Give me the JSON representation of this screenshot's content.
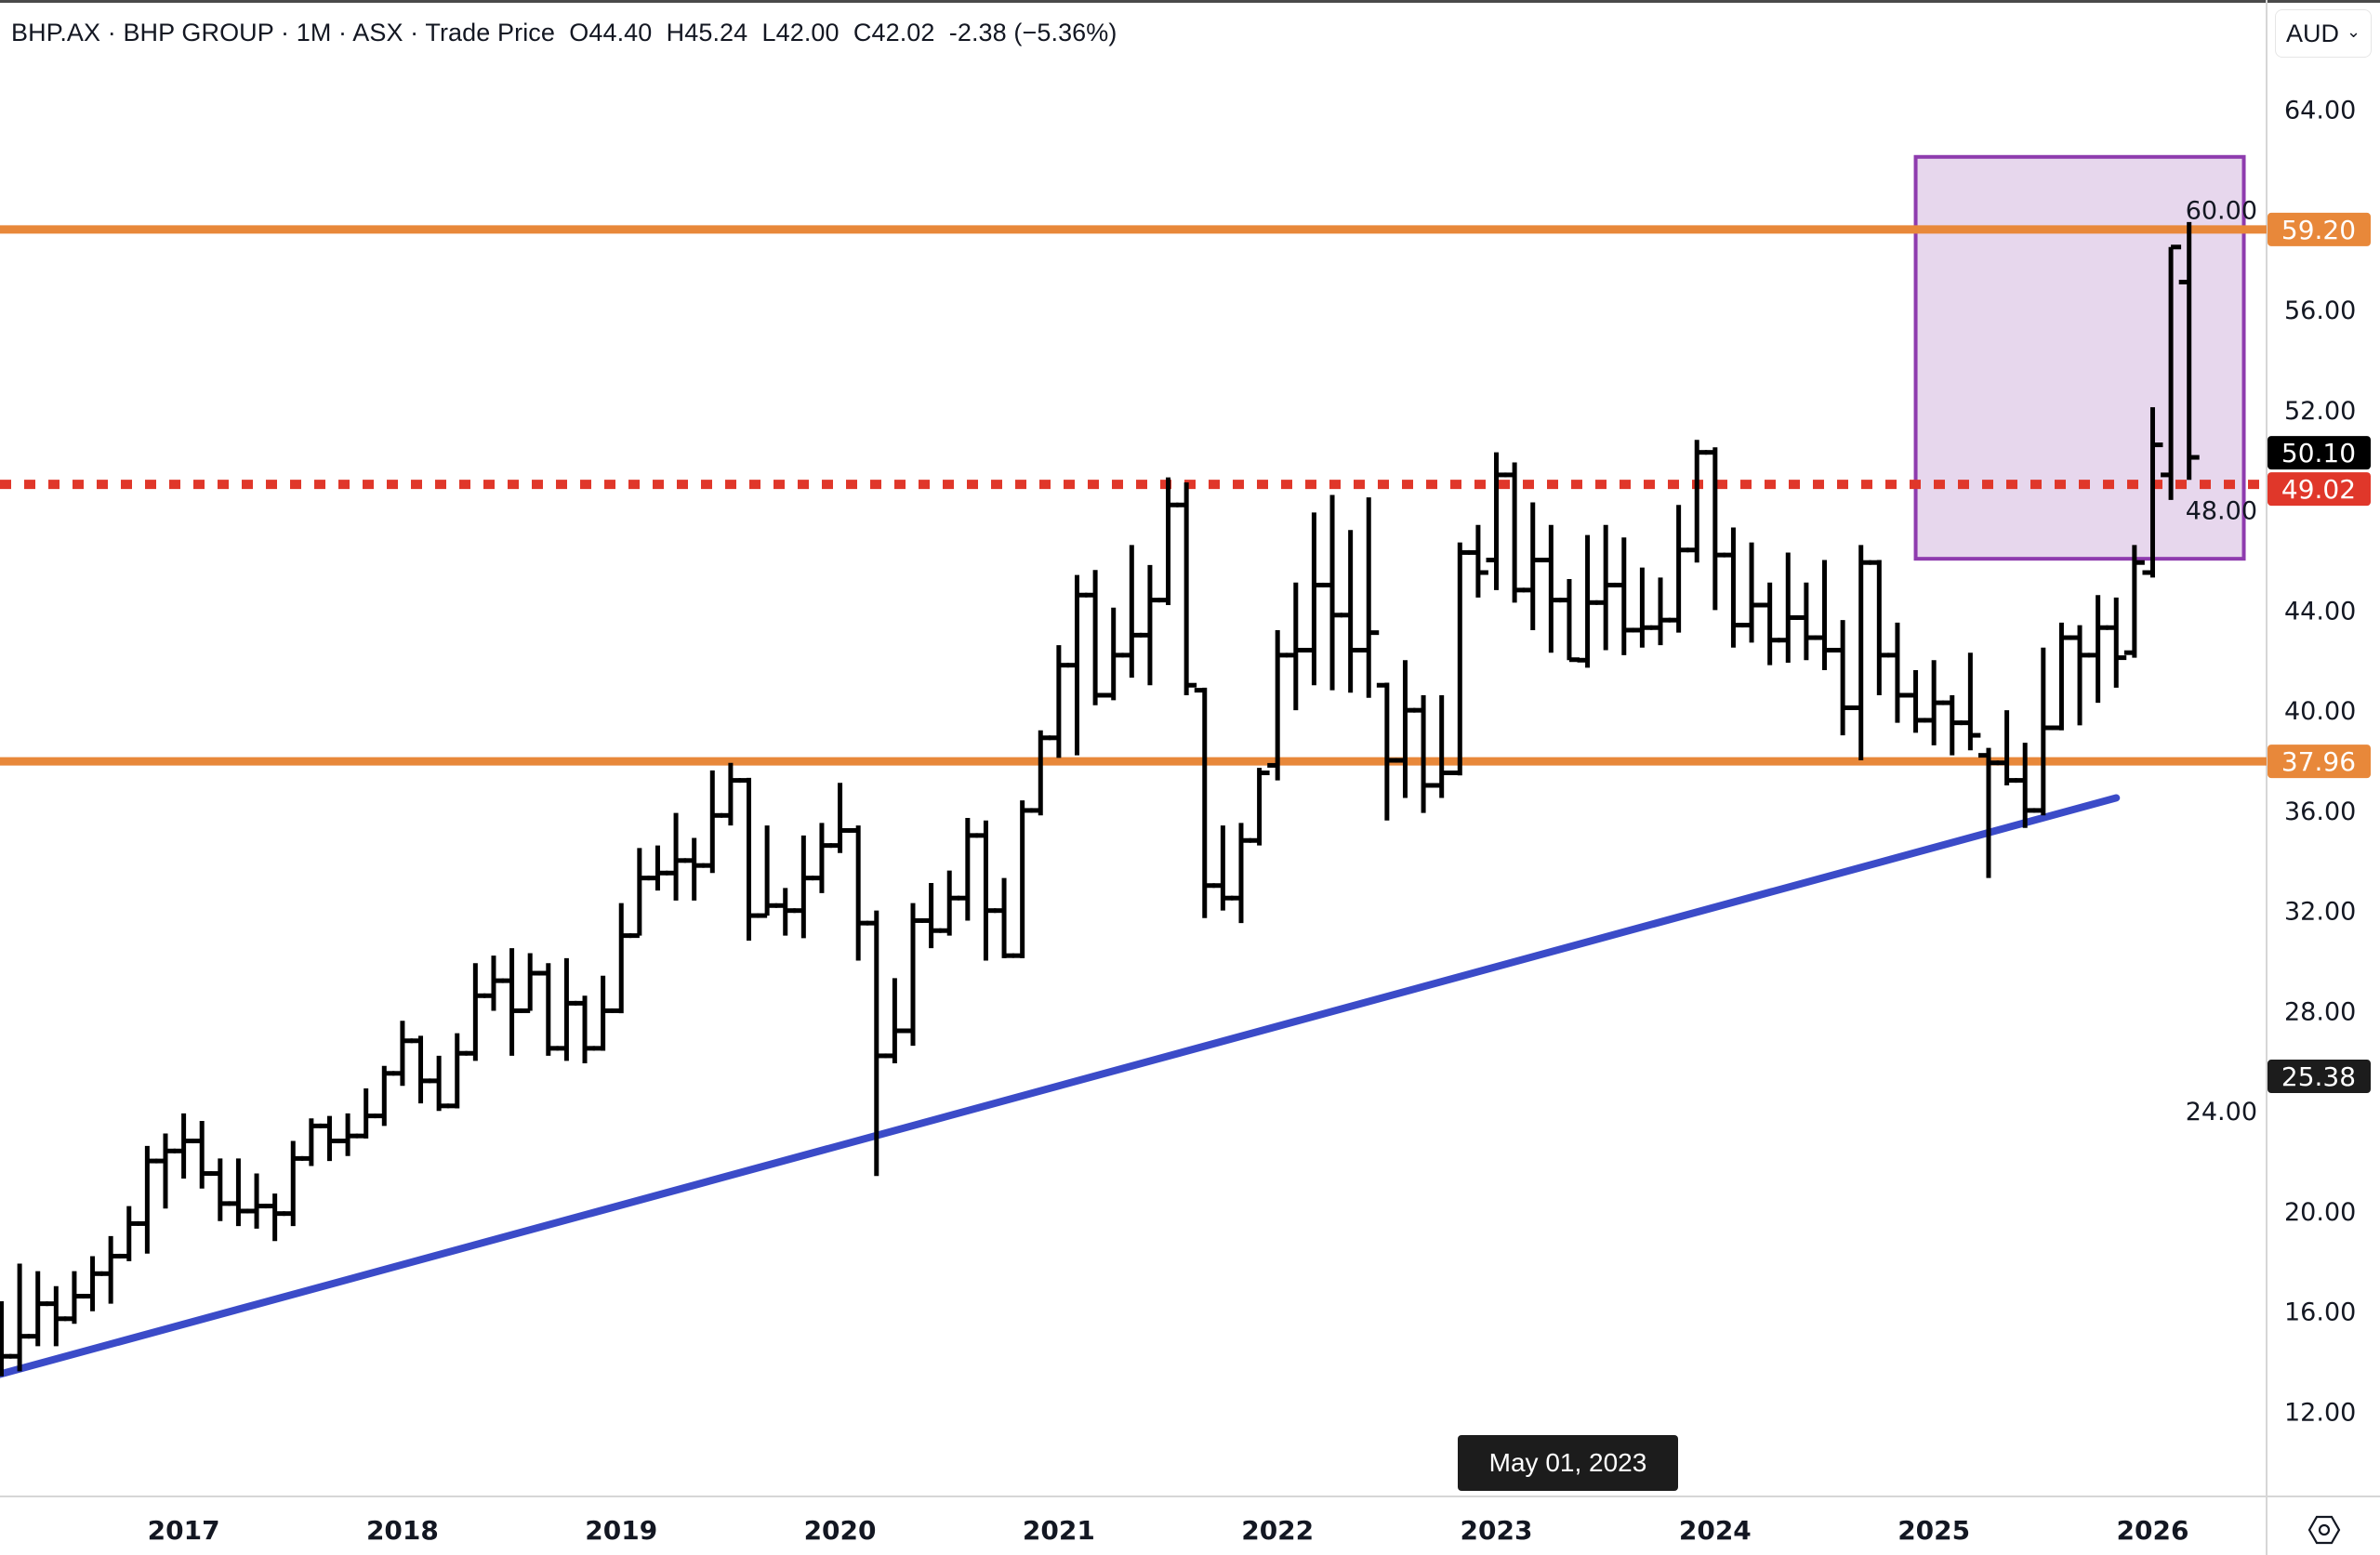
{
  "header": {
    "symbol": "BHP.AX",
    "name": "BHP GROUP",
    "interval": "1M",
    "exchange": "ASX",
    "source": "Trade Price",
    "sep": " · ",
    "open": "O44.40",
    "high": "H45.24",
    "low": "L42.00",
    "close": "C42.02",
    "change": "-2.38 (−5.36%)"
  },
  "currency_button": {
    "label": "AUD",
    "icon": "chevron-down-icon"
  },
  "crosshair_date": "May 01, 2023",
  "settings_icon": "gear-icon",
  "colors": {
    "bar": "#000000",
    "resistance": "#E8883A",
    "dotted_level": "#E0372A",
    "trendline": "#3B4BC8",
    "box_stroke": "#8E3BAE",
    "box_fill": "#E6D5EC",
    "last_price_label": "#000000"
  },
  "chart_data": {
    "type": "ohlc",
    "interval": "monthly",
    "xlabel": "",
    "ylabel": "",
    "ylim": [
      8.5,
      66
    ],
    "y_ticks": [
      "12.00",
      "16.00",
      "20.00",
      "24.00",
      "28.00",
      "32.00",
      "36.00",
      "40.00",
      "44.00",
      "48.00",
      "52.00",
      "56.00",
      "60.00",
      "64.00"
    ],
    "x_ticks": [
      "2017",
      "2018",
      "2019",
      "2020",
      "2021",
      "2022",
      "2023",
      "2024",
      "2025",
      "2026"
    ],
    "grid": false,
    "bar_fields": [
      "date",
      "open",
      "high",
      "low",
      "close"
    ],
    "bars": [
      [
        "2016-03",
        13.8,
        16.4,
        13.4,
        14.2
      ],
      [
        "2016-04",
        14.2,
        17.9,
        13.6,
        15.0
      ],
      [
        "2016-05",
        15.0,
        17.6,
        14.6,
        16.3
      ],
      [
        "2016-06",
        16.3,
        17.0,
        14.6,
        15.7
      ],
      [
        "2016-07",
        15.7,
        17.6,
        15.5,
        16.6
      ],
      [
        "2016-08",
        16.6,
        18.2,
        16.0,
        17.5
      ],
      [
        "2016-09",
        17.5,
        19.0,
        16.3,
        18.2
      ],
      [
        "2016-10",
        18.2,
        20.2,
        18.0,
        19.5
      ],
      [
        "2016-11",
        19.5,
        22.6,
        18.3,
        22.0
      ],
      [
        "2016-12",
        22.0,
        23.1,
        20.1,
        22.4
      ],
      [
        "2017-01",
        22.4,
        23.9,
        21.3,
        22.8
      ],
      [
        "2017-02",
        22.8,
        23.6,
        20.9,
        21.5
      ],
      [
        "2017-03",
        21.5,
        22.1,
        19.6,
        20.3
      ],
      [
        "2017-04",
        20.3,
        22.1,
        19.4,
        20.0
      ],
      [
        "2017-05",
        20.0,
        21.5,
        19.3,
        20.2
      ],
      [
        "2017-06",
        20.2,
        20.7,
        18.8,
        19.9
      ],
      [
        "2017-07",
        19.9,
        22.8,
        19.4,
        22.1
      ],
      [
        "2017-08",
        22.1,
        23.7,
        21.8,
        23.4
      ],
      [
        "2017-09",
        23.4,
        23.8,
        22.0,
        22.8
      ],
      [
        "2017-10",
        22.8,
        23.9,
        22.2,
        23.0
      ],
      [
        "2017-11",
        23.0,
        24.9,
        22.9,
        23.8
      ],
      [
        "2017-12",
        23.8,
        25.8,
        23.4,
        25.5
      ],
      [
        "2018-01",
        25.5,
        27.6,
        25.0,
        26.8
      ],
      [
        "2018-02",
        26.8,
        27.0,
        24.3,
        25.2
      ],
      [
        "2018-03",
        25.2,
        26.2,
        24.0,
        24.2
      ],
      [
        "2018-04",
        24.2,
        27.1,
        24.1,
        26.3
      ],
      [
        "2018-05",
        26.3,
        29.9,
        26.0,
        28.6
      ],
      [
        "2018-06",
        28.6,
        30.2,
        28.0,
        29.2
      ],
      [
        "2018-07",
        29.2,
        30.5,
        26.2,
        28.0
      ],
      [
        "2018-08",
        28.0,
        30.3,
        28.0,
        29.5
      ],
      [
        "2018-09",
        29.5,
        29.9,
        26.2,
        26.5
      ],
      [
        "2018-10",
        26.5,
        30.1,
        26.0,
        28.3
      ],
      [
        "2018-11",
        28.3,
        28.6,
        25.9,
        26.5
      ],
      [
        "2018-12",
        26.5,
        29.4,
        26.4,
        28.0
      ],
      [
        "2019-01",
        28.0,
        32.3,
        27.9,
        31.0
      ],
      [
        "2019-02",
        31.0,
        34.5,
        31.0,
        33.3
      ],
      [
        "2019-03",
        33.3,
        34.6,
        32.8,
        33.5
      ],
      [
        "2019-04",
        33.5,
        35.9,
        32.4,
        34.0
      ],
      [
        "2019-05",
        34.0,
        34.9,
        32.4,
        33.8
      ],
      [
        "2019-06",
        33.8,
        37.6,
        33.5,
        35.8
      ],
      [
        "2019-07",
        35.8,
        37.9,
        35.4,
        37.2
      ],
      [
        "2019-08",
        37.2,
        37.3,
        30.8,
        31.8
      ],
      [
        "2019-09",
        31.8,
        35.4,
        31.8,
        32.2
      ],
      [
        "2019-10",
        32.2,
        32.9,
        31.0,
        32.0
      ],
      [
        "2019-11",
        32.0,
        35.0,
        30.9,
        33.3
      ],
      [
        "2019-12",
        33.3,
        35.5,
        32.7,
        34.6
      ],
      [
        "2020-01",
        34.6,
        37.1,
        34.3,
        35.2
      ],
      [
        "2020-02",
        35.2,
        35.4,
        30.0,
        31.5
      ],
      [
        "2020-03",
        31.5,
        32.0,
        21.4,
        26.2
      ],
      [
        "2020-04",
        26.2,
        29.3,
        25.9,
        27.2
      ],
      [
        "2020-05",
        27.2,
        32.3,
        26.6,
        31.6
      ],
      [
        "2020-06",
        31.6,
        33.1,
        30.5,
        31.2
      ],
      [
        "2020-07",
        31.2,
        33.6,
        31.0,
        32.5
      ],
      [
        "2020-08",
        32.5,
        35.7,
        31.6,
        35.0
      ],
      [
        "2020-09",
        35.0,
        35.6,
        30.0,
        32.0
      ],
      [
        "2020-10",
        32.0,
        33.3,
        30.1,
        30.2
      ],
      [
        "2020-11",
        30.2,
        36.4,
        30.1,
        36.0
      ],
      [
        "2020-12",
        36.0,
        39.2,
        35.8,
        38.9
      ],
      [
        "2021-01",
        38.9,
        42.6,
        38.1,
        41.8
      ],
      [
        "2021-02",
        41.8,
        45.4,
        38.2,
        44.6
      ],
      [
        "2021-03",
        44.6,
        45.6,
        40.2,
        40.6
      ],
      [
        "2021-04",
        40.6,
        44.1,
        40.4,
        42.2
      ],
      [
        "2021-05",
        42.2,
        46.6,
        41.3,
        43.0
      ],
      [
        "2021-06",
        43.0,
        45.8,
        41.0,
        44.4
      ],
      [
        "2021-07",
        44.4,
        49.3,
        44.2,
        48.2
      ],
      [
        "2021-08",
        48.2,
        49.1,
        40.6,
        41.0
      ],
      [
        "2021-09",
        40.8,
        40.9,
        31.7,
        33.0
      ],
      [
        "2021-10",
        33.0,
        35.4,
        32.0,
        32.5
      ],
      [
        "2021-11",
        32.5,
        35.5,
        31.5,
        34.8
      ],
      [
        "2021-12",
        34.8,
        37.7,
        34.6,
        37.5
      ],
      [
        "2022-01",
        37.8,
        43.2,
        37.2,
        42.2
      ],
      [
        "2022-02",
        42.2,
        45.1,
        40.0,
        42.4
      ],
      [
        "2022-03",
        42.4,
        47.9,
        41.0,
        45.0
      ],
      [
        "2022-04",
        45.0,
        48.6,
        40.8,
        43.8
      ],
      [
        "2022-05",
        43.8,
        47.2,
        40.7,
        42.4
      ],
      [
        "2022-06",
        42.4,
        48.5,
        40.5,
        43.1
      ],
      [
        "2022-07",
        41.0,
        41.1,
        35.6,
        38.0
      ],
      [
        "2022-08",
        38.0,
        42.0,
        36.5,
        40.0
      ],
      [
        "2022-09",
        40.0,
        40.6,
        35.9,
        37.0
      ],
      [
        "2022-10",
        37.0,
        40.6,
        36.5,
        37.5
      ],
      [
        "2022-11",
        37.5,
        46.7,
        37.4,
        46.3
      ],
      [
        "2022-12",
        46.3,
        47.4,
        44.5,
        45.5
      ],
      [
        "2023-01",
        46.0,
        50.3,
        44.8,
        49.4
      ],
      [
        "2023-02",
        49.4,
        49.9,
        44.3,
        44.8
      ],
      [
        "2023-03",
        44.8,
        48.3,
        43.2,
        46.0
      ],
      [
        "2023-04",
        46.0,
        47.4,
        42.3,
        44.4
      ],
      [
        "2023-05",
        44.4,
        45.24,
        42.0,
        42.02
      ],
      [
        "2023-06",
        42.0,
        47.0,
        41.7,
        44.3
      ],
      [
        "2023-07",
        44.3,
        47.4,
        42.4,
        45.0
      ],
      [
        "2023-08",
        45.0,
        46.9,
        42.2,
        43.2
      ],
      [
        "2023-09",
        43.2,
        45.7,
        42.5,
        43.3
      ],
      [
        "2023-10",
        43.3,
        45.3,
        42.6,
        43.6
      ],
      [
        "2023-11",
        43.6,
        48.2,
        43.1,
        46.4
      ],
      [
        "2023-12",
        46.4,
        50.8,
        45.9,
        50.3
      ],
      [
        "2024-01",
        50.3,
        50.5,
        44.0,
        46.2
      ],
      [
        "2024-02",
        46.2,
        47.3,
        42.5,
        43.4
      ],
      [
        "2024-03",
        43.4,
        46.7,
        42.7,
        44.2
      ],
      [
        "2024-04",
        44.2,
        45.1,
        41.8,
        42.8
      ],
      [
        "2024-05",
        42.8,
        46.3,
        41.9,
        43.7
      ],
      [
        "2024-06",
        43.7,
        45.1,
        42.0,
        42.9
      ],
      [
        "2024-07",
        42.9,
        46.0,
        41.6,
        42.4
      ],
      [
        "2024-08",
        42.4,
        43.6,
        39.0,
        40.1
      ],
      [
        "2024-09",
        40.1,
        46.6,
        38.0,
        45.9
      ],
      [
        "2024-10",
        45.9,
        46.0,
        40.6,
        42.2
      ],
      [
        "2024-11",
        42.2,
        43.5,
        39.5,
        40.6
      ],
      [
        "2024-12",
        40.6,
        41.6,
        39.1,
        39.6
      ],
      [
        "2025-01",
        39.6,
        42.0,
        38.6,
        40.3
      ],
      [
        "2025-02",
        40.3,
        40.6,
        38.2,
        39.5
      ],
      [
        "2025-03",
        39.5,
        42.3,
        38.4,
        39.0
      ],
      [
        "2025-04",
        38.2,
        38.5,
        33.3,
        37.9
      ],
      [
        "2025-05",
        37.9,
        40.0,
        37.0,
        37.2
      ],
      [
        "2025-06",
        37.2,
        38.7,
        35.3,
        36.0
      ],
      [
        "2025-07",
        36.0,
        42.5,
        35.8,
        39.3
      ],
      [
        "2025-08",
        39.3,
        43.5,
        39.2,
        42.9
      ],
      [
        "2025-09",
        42.9,
        43.4,
        39.4,
        42.2
      ],
      [
        "2025-10",
        42.2,
        44.6,
        40.3,
        43.3
      ],
      [
        "2025-11",
        43.3,
        44.5,
        40.9,
        42.1
      ],
      [
        "2025-12",
        42.3,
        46.6,
        42.1,
        45.9
      ],
      [
        "2026-01",
        45.5,
        52.1,
        45.3,
        50.6
      ],
      [
        "2026-02",
        49.4,
        58.5,
        48.4,
        58.5
      ],
      [
        "2026-03",
        57.1,
        59.5,
        49.2,
        50.1
      ]
    ],
    "horizontal_levels": [
      {
        "price": 59.2,
        "label": "59.20",
        "style": "solid",
        "color": "#E8883A"
      },
      {
        "price": 49.02,
        "label": "49.02",
        "style": "dotted",
        "color": "#E0372A"
      },
      {
        "price": 37.96,
        "label": "37.96",
        "style": "solid",
        "color": "#E8883A"
      }
    ],
    "price_labels": [
      {
        "price": 50.1,
        "label": "50.10",
        "color": "#000000"
      },
      {
        "price": 25.38,
        "label": "25.38",
        "color": "#1c1c1c"
      }
    ],
    "trendline": {
      "from": [
        "2016-02",
        13.3
      ],
      "to": [
        "2025-11",
        36.5
      ],
      "color": "#3B4BC8"
    },
    "rectangle": {
      "from": [
        "2024-12",
        62.1
      ],
      "to": [
        "2026-06",
        46.05
      ],
      "stroke": "#8E3BAE",
      "fill": "#E6D5EC"
    }
  }
}
